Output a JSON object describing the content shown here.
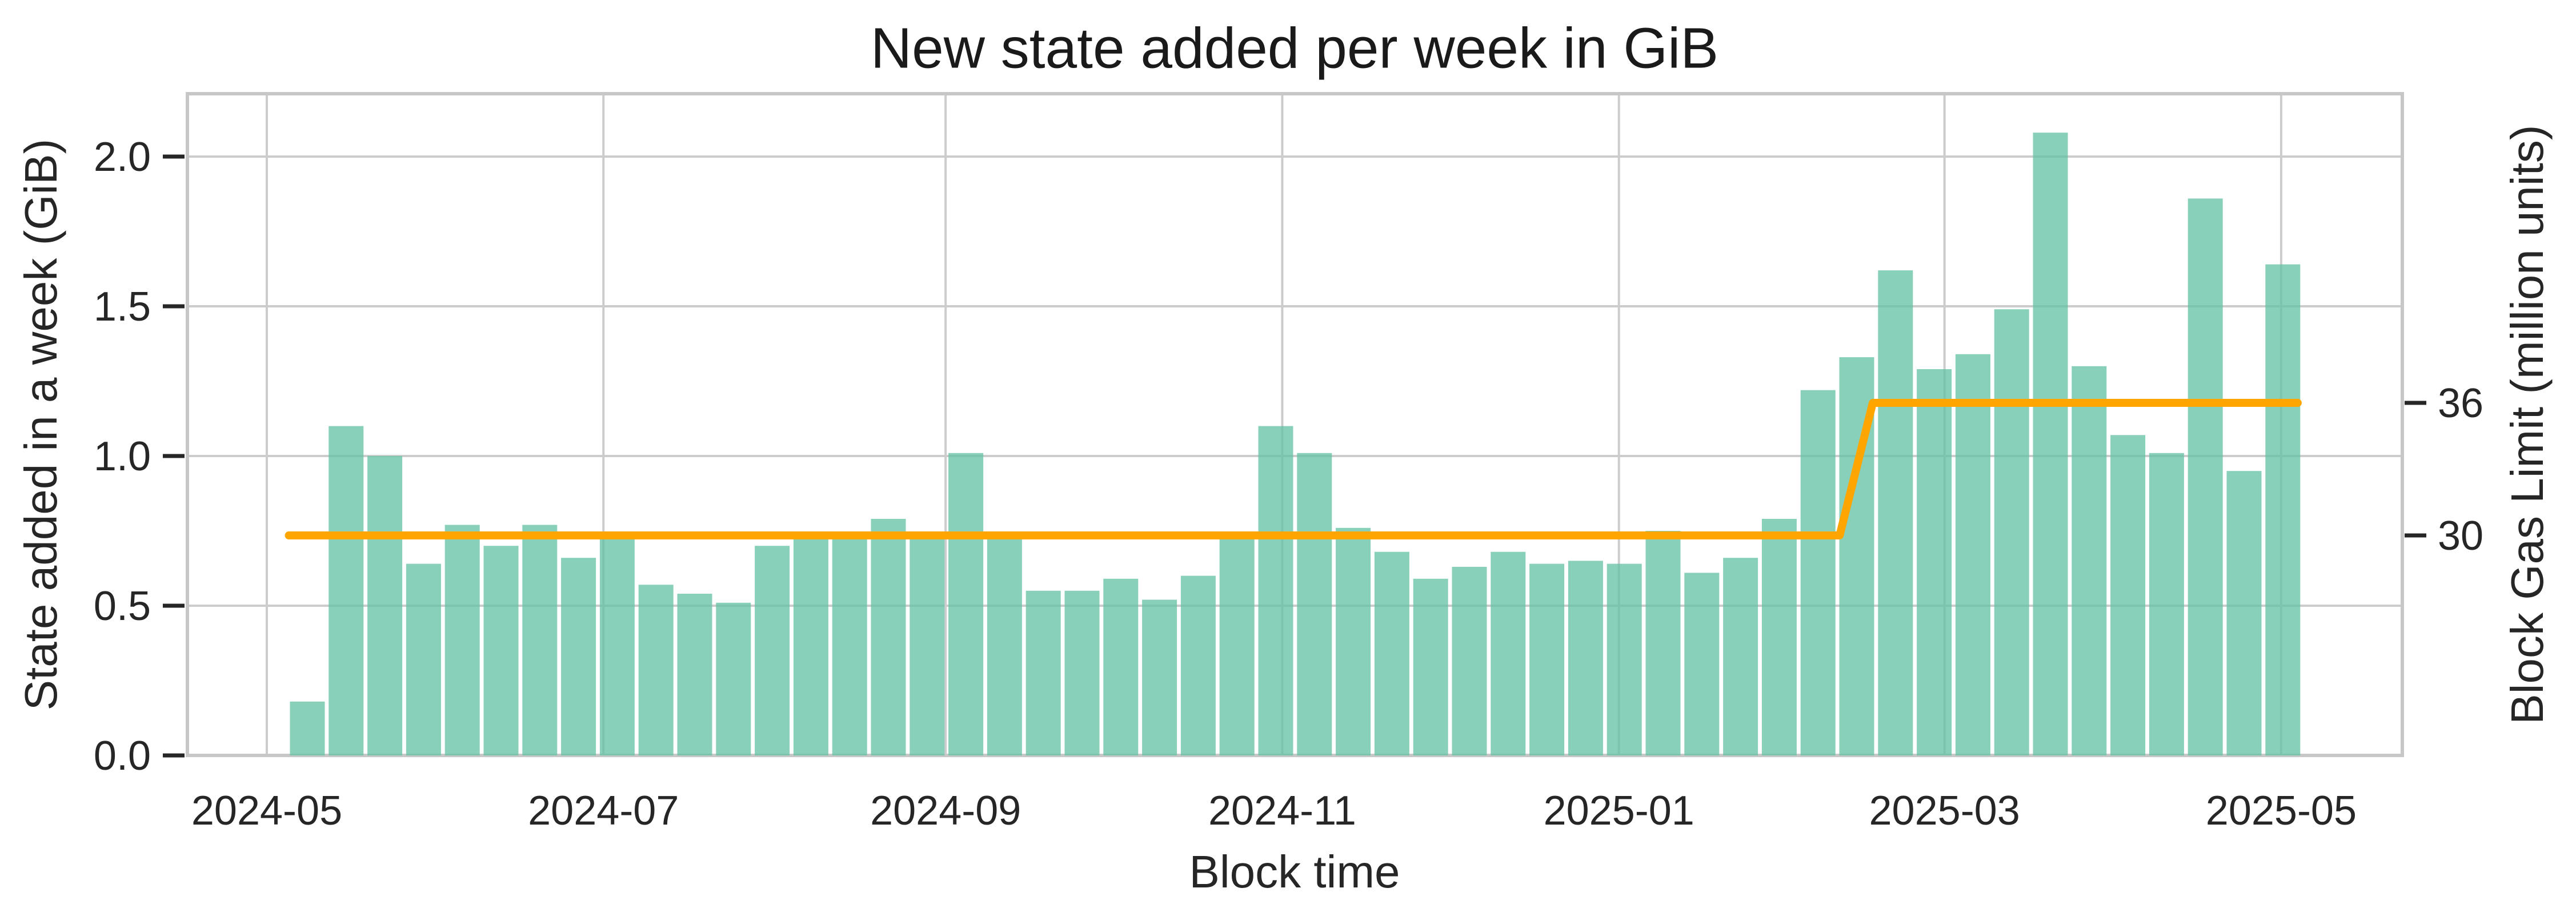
{
  "chart_data": {
    "type": "bar",
    "title": "New state added per week in GiB",
    "xlabel": "Block time",
    "ylabel": "State added in a week (GiB)",
    "ylabel_right": "Block Gas Limit (million units)",
    "x_tick_labels": [
      "2024-05",
      "2024-07",
      "2024-09",
      "2024-11",
      "2025-01",
      "2025-03",
      "2025-05"
    ],
    "y_tick_labels_left": [
      "0.0",
      "0.5",
      "1.0",
      "1.5",
      "2.0"
    ],
    "y_ticks_left": [
      0.0,
      0.5,
      1.0,
      1.5,
      2.0
    ],
    "y_tick_labels_right": [
      "30",
      "36"
    ],
    "y_ticks_right": [
      30,
      36
    ],
    "ylim_left": [
      0,
      2.21
    ],
    "grid": true,
    "legend_position": "none",
    "bar_series": {
      "name": "New state added per week (GiB)",
      "week_start": "2024-05-06",
      "interval_days": 7,
      "unit": "GiB",
      "values": [
        0.18,
        1.1,
        1.0,
        0.64,
        0.77,
        0.7,
        0.77,
        0.66,
        0.73,
        0.57,
        0.54,
        0.51,
        0.7,
        0.73,
        0.73,
        0.79,
        0.73,
        1.01,
        0.73,
        0.55,
        0.55,
        0.59,
        0.52,
        0.6,
        0.73,
        1.1,
        1.01,
        0.76,
        0.68,
        0.59,
        0.63,
        0.68,
        0.64,
        0.65,
        0.64,
        0.75,
        0.61,
        0.66,
        0.79,
        1.22,
        1.33,
        1.62,
        1.29,
        1.34,
        1.49,
        2.08,
        1.3,
        1.07,
        1.01,
        1.86,
        0.95,
        1.64
      ]
    },
    "line_series": {
      "name": "Block Gas Limit (million units)",
      "unit": "million gas units",
      "points": [
        {
          "date": "2024-05-05",
          "value": 30
        },
        {
          "date": "2025-02-10",
          "value": 30
        },
        {
          "date": "2025-02-16",
          "value": 36
        },
        {
          "date": "2025-05-04",
          "value": 36
        }
      ]
    },
    "colors": {
      "bar_fill": "#66c2a5",
      "bar_alpha": 0.77,
      "line": "#ffa500",
      "gridline": "#cccccc",
      "spine": "#c7c7c7",
      "tick_mark": "#262626",
      "text": "#262626"
    }
  }
}
